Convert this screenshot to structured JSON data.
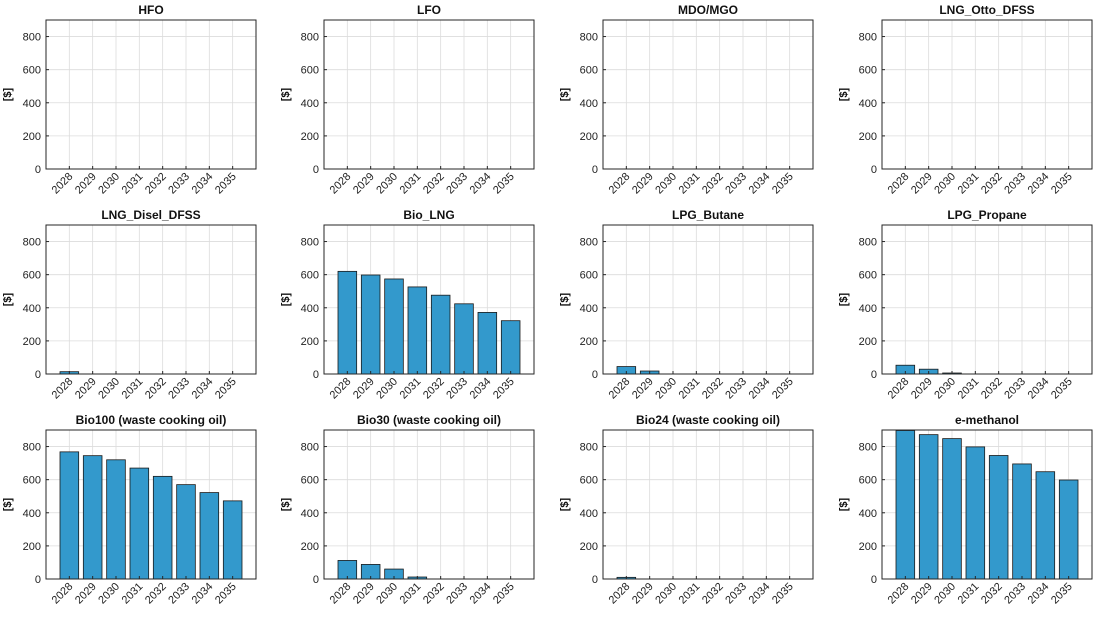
{
  "chart_data": [
    {
      "type": "bar",
      "title": "HFO",
      "ylabel": "[$]",
      "ylim": [
        0,
        900
      ],
      "yticks": [
        0,
        200,
        400,
        600,
        800
      ],
      "categories": [
        "2028",
        "2029",
        "2030",
        "2031",
        "2032",
        "2033",
        "2034",
        "2035"
      ],
      "values": [
        0,
        0,
        0,
        0,
        0,
        0,
        0,
        0
      ],
      "grid": true,
      "bar_color": "#3399CC"
    },
    {
      "type": "bar",
      "title": "LFO",
      "ylabel": "[$]",
      "ylim": [
        0,
        900
      ],
      "yticks": [
        0,
        200,
        400,
        600,
        800
      ],
      "categories": [
        "2028",
        "2029",
        "2030",
        "2031",
        "2032",
        "2033",
        "2034",
        "2035"
      ],
      "values": [
        0,
        0,
        0,
        0,
        0,
        0,
        0,
        0
      ],
      "grid": true,
      "bar_color": "#3399CC"
    },
    {
      "type": "bar",
      "title": "MDO/MGO",
      "ylabel": "[$]",
      "ylim": [
        0,
        900
      ],
      "yticks": [
        0,
        200,
        400,
        600,
        800
      ],
      "categories": [
        "2028",
        "2029",
        "2030",
        "2031",
        "2032",
        "2033",
        "2034",
        "2035"
      ],
      "values": [
        0,
        0,
        0,
        0,
        0,
        0,
        0,
        0
      ],
      "grid": true,
      "bar_color": "#3399CC"
    },
    {
      "type": "bar",
      "title": "LNG_Otto_DFSS",
      "ylabel": "[$]",
      "ylim": [
        0,
        900
      ],
      "yticks": [
        0,
        200,
        400,
        600,
        800
      ],
      "categories": [
        "2028",
        "2029",
        "2030",
        "2031",
        "2032",
        "2033",
        "2034",
        "2035"
      ],
      "values": [
        0,
        0,
        0,
        0,
        0,
        0,
        0,
        0
      ],
      "grid": true,
      "bar_color": "#3399CC"
    },
    {
      "type": "bar",
      "title": "LNG_Disel_DFSS",
      "ylabel": "[$]",
      "ylim": [
        0,
        900
      ],
      "yticks": [
        0,
        200,
        400,
        600,
        800
      ],
      "categories": [
        "2028",
        "2029",
        "2030",
        "2031",
        "2032",
        "2033",
        "2034",
        "2035"
      ],
      "values": [
        14,
        0,
        0,
        0,
        0,
        0,
        0,
        0
      ],
      "grid": true,
      "bar_color": "#3399CC"
    },
    {
      "type": "bar",
      "title": "Bio_LNG",
      "ylabel": "[$]",
      "ylim": [
        0,
        900
      ],
      "yticks": [
        0,
        200,
        400,
        600,
        800
      ],
      "categories": [
        "2028",
        "2029",
        "2030",
        "2031",
        "2032",
        "2033",
        "2034",
        "2035"
      ],
      "values": [
        620,
        598,
        574,
        526,
        476,
        424,
        372,
        322
      ],
      "grid": true,
      "bar_color": "#3399CC"
    },
    {
      "type": "bar",
      "title": "LPG_Butane",
      "ylabel": "[$]",
      "ylim": [
        0,
        900
      ],
      "yticks": [
        0,
        200,
        400,
        600,
        800
      ],
      "categories": [
        "2028",
        "2029",
        "2030",
        "2031",
        "2032",
        "2033",
        "2034",
        "2035"
      ],
      "values": [
        45,
        18,
        0,
        0,
        0,
        0,
        0,
        0
      ],
      "grid": true,
      "bar_color": "#3399CC"
    },
    {
      "type": "bar",
      "title": "LPG_Propane",
      "ylabel": "[$]",
      "ylim": [
        0,
        900
      ],
      "yticks": [
        0,
        200,
        400,
        600,
        800
      ],
      "categories": [
        "2028",
        "2029",
        "2030",
        "2031",
        "2032",
        "2033",
        "2034",
        "2035"
      ],
      "values": [
        53,
        29,
        6,
        0,
        0,
        0,
        0,
        0
      ],
      "grid": true,
      "bar_color": "#3399CC"
    },
    {
      "type": "bar",
      "title": "Bio100 (waste cooking oil)",
      "ylabel": "[$]",
      "ylim": [
        0,
        900
      ],
      "yticks": [
        0,
        200,
        400,
        600,
        800
      ],
      "categories": [
        "2028",
        "2029",
        "2030",
        "2031",
        "2032",
        "2033",
        "2034",
        "2035"
      ],
      "values": [
        768,
        745,
        720,
        670,
        620,
        570,
        522,
        472
      ],
      "grid": true,
      "bar_color": "#3399CC"
    },
    {
      "type": "bar",
      "title": "Bio30 (waste cooking oil)",
      "ylabel": "[$]",
      "ylim": [
        0,
        900
      ],
      "yticks": [
        0,
        200,
        400,
        600,
        800
      ],
      "categories": [
        "2028",
        "2029",
        "2030",
        "2031",
        "2032",
        "2033",
        "2034",
        "2035"
      ],
      "values": [
        112,
        88,
        60,
        12,
        0,
        0,
        0,
        0
      ],
      "grid": true,
      "bar_color": "#3399CC"
    },
    {
      "type": "bar",
      "title": "Bio24 (waste cooking oil)",
      "ylabel": "[$]",
      "ylim": [
        0,
        900
      ],
      "yticks": [
        0,
        200,
        400,
        600,
        800
      ],
      "categories": [
        "2028",
        "2029",
        "2030",
        "2031",
        "2032",
        "2033",
        "2034",
        "2035"
      ],
      "values": [
        10,
        0,
        0,
        0,
        0,
        0,
        0,
        0
      ],
      "grid": true,
      "bar_color": "#3399CC"
    },
    {
      "type": "bar",
      "title": "e-methanol",
      "ylabel": "[$]",
      "ylim": [
        0,
        900
      ],
      "yticks": [
        0,
        200,
        400,
        600,
        800
      ],
      "categories": [
        "2028",
        "2029",
        "2030",
        "2031",
        "2032",
        "2033",
        "2034",
        "2035"
      ],
      "values": [
        897,
        872,
        848,
        798,
        746,
        695,
        648,
        598
      ],
      "grid": true,
      "bar_color": "#3399CC"
    }
  ]
}
